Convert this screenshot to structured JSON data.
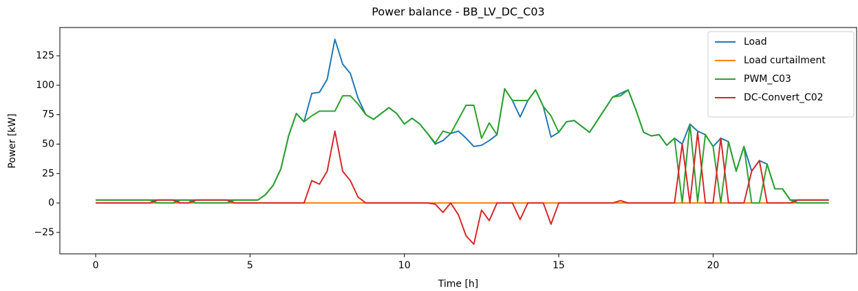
{
  "chart_data": {
    "type": "line",
    "title": "Power balance - BB_LV_DC_C03",
    "x_label": "Time [h]",
    "y_label": "Power [kW]",
    "x": [
      0,
      0.25,
      0.5,
      0.75,
      1,
      1.25,
      1.5,
      1.75,
      2,
      2.25,
      2.5,
      2.75,
      3,
      3.25,
      3.5,
      3.75,
      4,
      4.25,
      4.5,
      4.75,
      5,
      5.25,
      5.5,
      5.75,
      6,
      6.25,
      6.5,
      6.75,
      7,
      7.25,
      7.5,
      7.75,
      8,
      8.25,
      8.5,
      8.75,
      9,
      9.25,
      9.5,
      9.75,
      10,
      10.25,
      10.5,
      10.75,
      11,
      11.25,
      11.5,
      11.75,
      12,
      12.25,
      12.5,
      12.75,
      13,
      13.25,
      13.5,
      13.75,
      14,
      14.25,
      14.5,
      14.75,
      15,
      15.25,
      15.5,
      15.75,
      16,
      16.25,
      16.5,
      16.75,
      17,
      17.25,
      17.5,
      17.75,
      18,
      18.25,
      18.5,
      18.75,
      19,
      19.25,
      19.5,
      19.75,
      20,
      20.25,
      20.5,
      20.75,
      21,
      21.25,
      21.5,
      21.75,
      22,
      22.25,
      22.5,
      22.75,
      23,
      23.25,
      23.5,
      23.75
    ],
    "series": [
      {
        "name": "Load",
        "color": "#1f77b4",
        "values": [
          2.5,
          2.5,
          2.5,
          2.5,
          2.5,
          2.5,
          2.5,
          2.5,
          2.5,
          2.5,
          2.5,
          2.5,
          2.5,
          2.5,
          2.5,
          2.5,
          2.5,
          2.5,
          2.5,
          2.5,
          2.5,
          2.5,
          7,
          15,
          29,
          57,
          76,
          69,
          93,
          94,
          105,
          139,
          118,
          110,
          89,
          75,
          71,
          76,
          81,
          76,
          67,
          72,
          67,
          59,
          50,
          53,
          59,
          61,
          55,
          48,
          49,
          53,
          58,
          97,
          87,
          73,
          87,
          96,
          82,
          56,
          60,
          69,
          70,
          65,
          60,
          70,
          80,
          90,
          93,
          96,
          79,
          60,
          57,
          58,
          49,
          55,
          50,
          67,
          61,
          58,
          48,
          55,
          52,
          27,
          48,
          27,
          36,
          33,
          12,
          12,
          2.5,
          2.5,
          2.5,
          2.5,
          2.5,
          2.5
        ]
      },
      {
        "name": "Load curtailment",
        "color": "#ff7f0e",
        "values": [
          0,
          0,
          0,
          0,
          0,
          0,
          0,
          0,
          0,
          0,
          0,
          0,
          0,
          0,
          0,
          0,
          0,
          0,
          0,
          0,
          0,
          0,
          0,
          0,
          0,
          0,
          0,
          0,
          0,
          0,
          0,
          0,
          0,
          0,
          0,
          0,
          0,
          0,
          0,
          0,
          0,
          0,
          0,
          0,
          0,
          0,
          0,
          0,
          0,
          0,
          0,
          0,
          0,
          0,
          0,
          0,
          0,
          0,
          0,
          0,
          0,
          0,
          0,
          0,
          0,
          0,
          0,
          0,
          0,
          0,
          0,
          0,
          0,
          0,
          0,
          0,
          0,
          0,
          0,
          0,
          0,
          0,
          0,
          0,
          0,
          0,
          0,
          0,
          0,
          0,
          0,
          0,
          0,
          0,
          0,
          0
        ]
      },
      {
        "name": "PWM_C03",
        "color": "#2ca02c",
        "values": [
          2.5,
          2.5,
          2.5,
          2.5,
          2.5,
          2.5,
          2.5,
          2.5,
          0,
          0,
          0,
          2.5,
          2.5,
          0,
          0,
          0,
          0,
          0,
          2.5,
          2.5,
          2.5,
          2.5,
          7,
          15,
          29,
          57,
          76,
          69,
          74,
          78,
          78,
          78,
          91,
          91,
          84,
          75,
          71,
          76,
          81,
          76,
          67,
          72,
          67,
          59,
          51,
          61,
          59,
          71,
          83,
          83,
          55,
          68,
          58,
          97,
          87,
          87,
          87,
          96,
          82,
          74,
          60,
          69,
          70,
          65,
          60,
          70,
          80,
          90,
          91,
          96,
          79,
          60,
          57,
          58,
          49,
          55,
          0,
          67,
          1,
          58,
          48,
          0,
          52,
          27,
          48,
          0,
          0,
          33,
          12,
          12,
          2.5,
          0,
          0,
          0,
          0,
          0
        ]
      },
      {
        "name": "DC-Convert_C02",
        "color": "#d62728",
        "values": [
          0,
          0,
          0,
          0,
          0,
          0,
          0,
          0,
          2.5,
          2.5,
          2.5,
          0,
          0,
          2.5,
          2.5,
          2.5,
          2.5,
          2.5,
          0,
          0,
          0,
          0,
          0,
          0,
          0,
          0,
          0,
          0,
          19,
          16,
          27,
          61,
          27,
          19,
          5,
          0,
          0,
          0,
          0,
          0,
          0,
          0,
          0,
          0,
          -1,
          -8,
          0,
          -10,
          -28,
          -35,
          -6,
          -15,
          0,
          0,
          0,
          -14,
          0,
          0,
          0,
          -18,
          0,
          0,
          0,
          0,
          0,
          0,
          0,
          0,
          2,
          0,
          0,
          0,
          0,
          0,
          0,
          0,
          50,
          0,
          60,
          0,
          0,
          55,
          0,
          0,
          0,
          27,
          36,
          0,
          0,
          0,
          0,
          2.5,
          2.5,
          2.5,
          2.5,
          2.5
        ]
      }
    ],
    "xlim": [
      -1.16,
      24.65
    ],
    "xticks": [
      0,
      5,
      10,
      15,
      20
    ],
    "ylim": [
      -43.2,
      149
    ],
    "yticks": [
      {
        "value": -25,
        "label": "−25"
      },
      0,
      25,
      50,
      75,
      100,
      125
    ],
    "legend": "upper right"
  }
}
